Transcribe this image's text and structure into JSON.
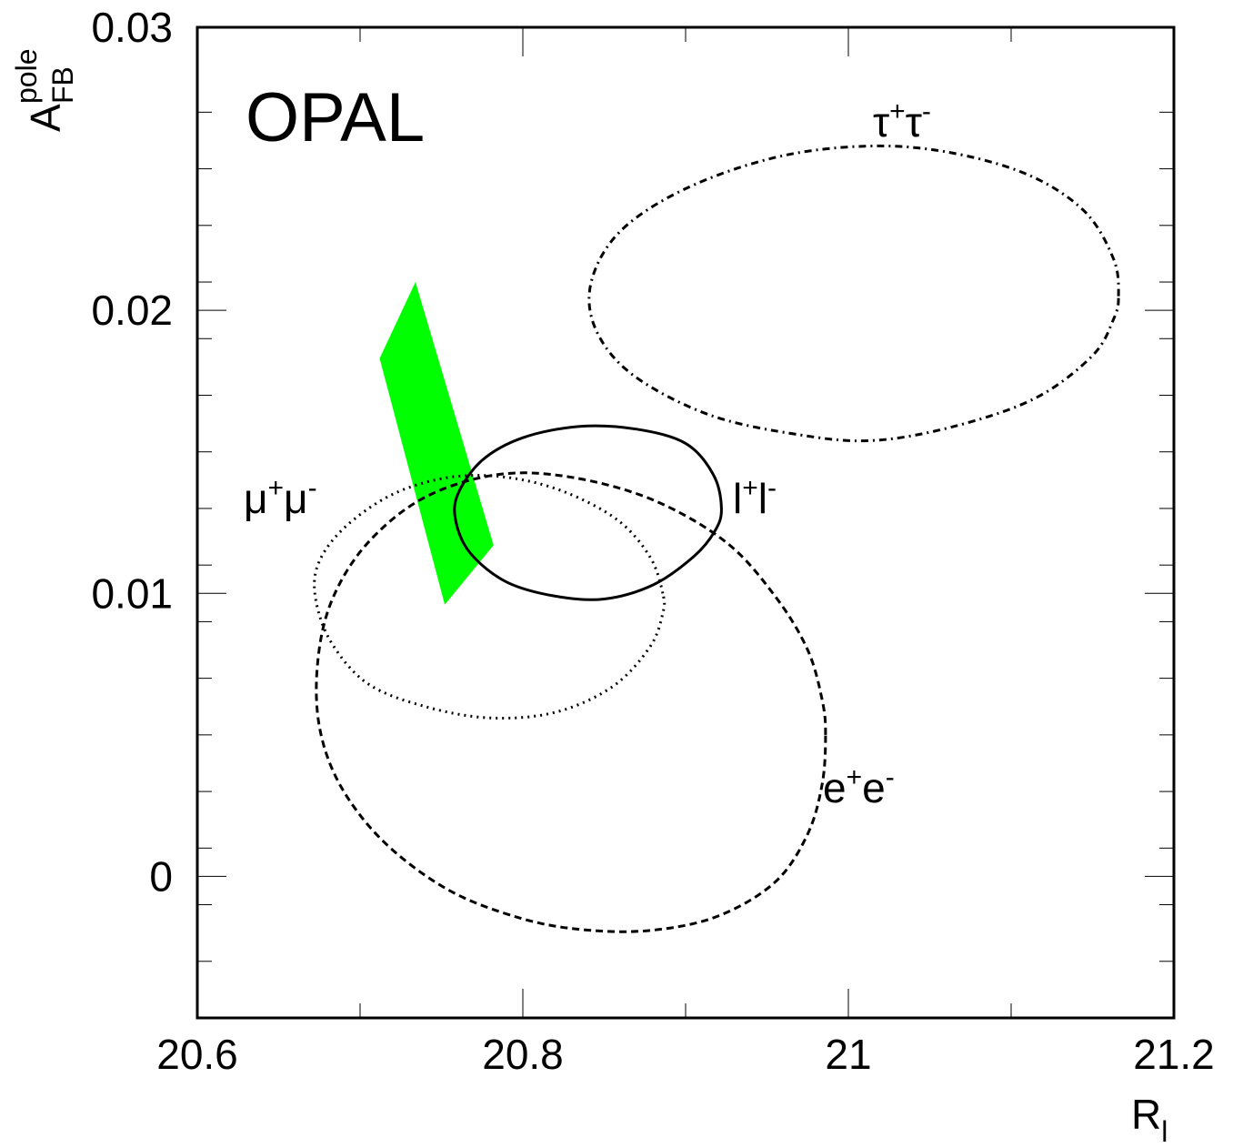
{
  "chart_data": {
    "type": "scatter",
    "title": "OPAL",
    "xlabel": {
      "main": "R",
      "sub": "l"
    },
    "ylabel": {
      "main": "A",
      "sub": "FB",
      "sup": "pole"
    },
    "xlim": [
      20.6,
      21.2
    ],
    "ylim": [
      -0.005,
      0.03
    ],
    "x_ticks": [
      {
        "value": 20.6,
        "label": "20.6"
      },
      {
        "value": 20.8,
        "label": "20.8"
      },
      {
        "value": 21.0,
        "label": "21"
      },
      {
        "value": 21.2,
        "label": "21.2"
      }
    ],
    "y_ticks": [
      {
        "value": 0,
        "label": "0"
      },
      {
        "value": 0.01,
        "label": "0.01"
      },
      {
        "value": 0.02,
        "label": "0.02"
      },
      {
        "value": 0.03,
        "label": "0.03"
      }
    ],
    "x_minor_step": 0.1,
    "y_minor_step": 0.002,
    "contours": [
      {
        "name": "tau",
        "label": {
          "base1": "τ",
          "sup1": "+",
          "base2": "τ",
          "sup2": "-"
        },
        "style": "dashdot",
        "points": [
          [
            21.166,
            0.0205
          ],
          [
            21.163,
            0.0218
          ],
          [
            21.145,
            0.0235
          ],
          [
            21.11,
            0.0248
          ],
          [
            21.06,
            0.0256
          ],
          [
            21.01,
            0.0258
          ],
          [
            20.955,
            0.0254
          ],
          [
            20.9,
            0.0243
          ],
          [
            20.86,
            0.0228
          ],
          [
            20.842,
            0.021
          ],
          [
            20.845,
            0.0193
          ],
          [
            20.868,
            0.0177
          ],
          [
            20.915,
            0.0163
          ],
          [
            20.97,
            0.0156
          ],
          [
            21.015,
            0.0154
          ],
          [
            21.065,
            0.0159
          ],
          [
            21.115,
            0.0169
          ],
          [
            21.15,
            0.0184
          ],
          [
            21.163,
            0.0197
          ],
          [
            21.166,
            0.0205
          ]
        ]
      },
      {
        "name": "l",
        "label": {
          "base1": "l",
          "sup1": "+",
          "base2": "l",
          "sup2": "-"
        },
        "style": "solid",
        "points": [
          [
            20.922,
            0.013
          ],
          [
            20.917,
            0.0142
          ],
          [
            20.9,
            0.0153
          ],
          [
            20.87,
            0.0158
          ],
          [
            20.835,
            0.0159
          ],
          [
            20.8,
            0.0155
          ],
          [
            20.775,
            0.0147
          ],
          [
            20.76,
            0.0135
          ],
          [
            20.759,
            0.0125
          ],
          [
            20.768,
            0.0114
          ],
          [
            20.79,
            0.0104
          ],
          [
            20.82,
            0.0099
          ],
          [
            20.85,
            0.0098
          ],
          [
            20.88,
            0.0103
          ],
          [
            20.905,
            0.0113
          ],
          [
            20.918,
            0.0122
          ],
          [
            20.922,
            0.013
          ]
        ]
      },
      {
        "name": "mu",
        "label": {
          "base1": "μ",
          "sup1": "+",
          "base2": "μ",
          "sup2": "-"
        },
        "style": "dotted",
        "points": [
          [
            20.886,
            0.01
          ],
          [
            20.878,
            0.0113
          ],
          [
            20.858,
            0.0126
          ],
          [
            20.825,
            0.0136
          ],
          [
            20.79,
            0.0141
          ],
          [
            20.755,
            0.0141
          ],
          [
            20.72,
            0.0135
          ],
          [
            20.69,
            0.0123
          ],
          [
            20.674,
            0.011
          ],
          [
            20.673,
            0.0097
          ],
          [
            20.683,
            0.0082
          ],
          [
            20.705,
            0.0068
          ],
          [
            20.74,
            0.006
          ],
          [
            20.78,
            0.0056
          ],
          [
            20.82,
            0.0058
          ],
          [
            20.855,
            0.0067
          ],
          [
            20.878,
            0.0081
          ],
          [
            20.886,
            0.0093
          ],
          [
            20.886,
            0.01
          ]
        ]
      },
      {
        "name": "e",
        "label": {
          "base1": "e",
          "sup1": "+",
          "base2": "e",
          "sup2": "-"
        },
        "style": "dashed",
        "points": [
          [
            20.986,
            0.005
          ],
          [
            20.984,
            0.0062
          ],
          [
            20.975,
            0.008
          ],
          [
            20.955,
            0.0099
          ],
          [
            20.925,
            0.0118
          ],
          [
            20.88,
            0.0133
          ],
          [
            20.83,
            0.0141
          ],
          [
            20.785,
            0.0142
          ],
          [
            20.74,
            0.0134
          ],
          [
            20.705,
            0.0118
          ],
          [
            20.683,
            0.0098
          ],
          [
            20.674,
            0.0076
          ],
          [
            20.675,
            0.0053
          ],
          [
            20.688,
            0.0032
          ],
          [
            20.715,
            0.0012
          ],
          [
            20.755,
            -0.0005
          ],
          [
            20.8,
            -0.0015
          ],
          [
            20.84,
            -0.0019
          ],
          [
            20.88,
            -0.0019
          ],
          [
            20.92,
            -0.0014
          ],
          [
            20.955,
            -0.0002
          ],
          [
            20.975,
            0.0015
          ],
          [
            20.984,
            0.0033
          ],
          [
            20.986,
            0.005
          ]
        ]
      }
    ],
    "band": {
      "color": "#00ff00",
      "points": [
        [
          20.734,
          0.021
        ],
        [
          20.782,
          0.0117
        ],
        [
          20.752,
          0.0096
        ],
        [
          20.712,
          0.0183
        ]
      ]
    }
  }
}
